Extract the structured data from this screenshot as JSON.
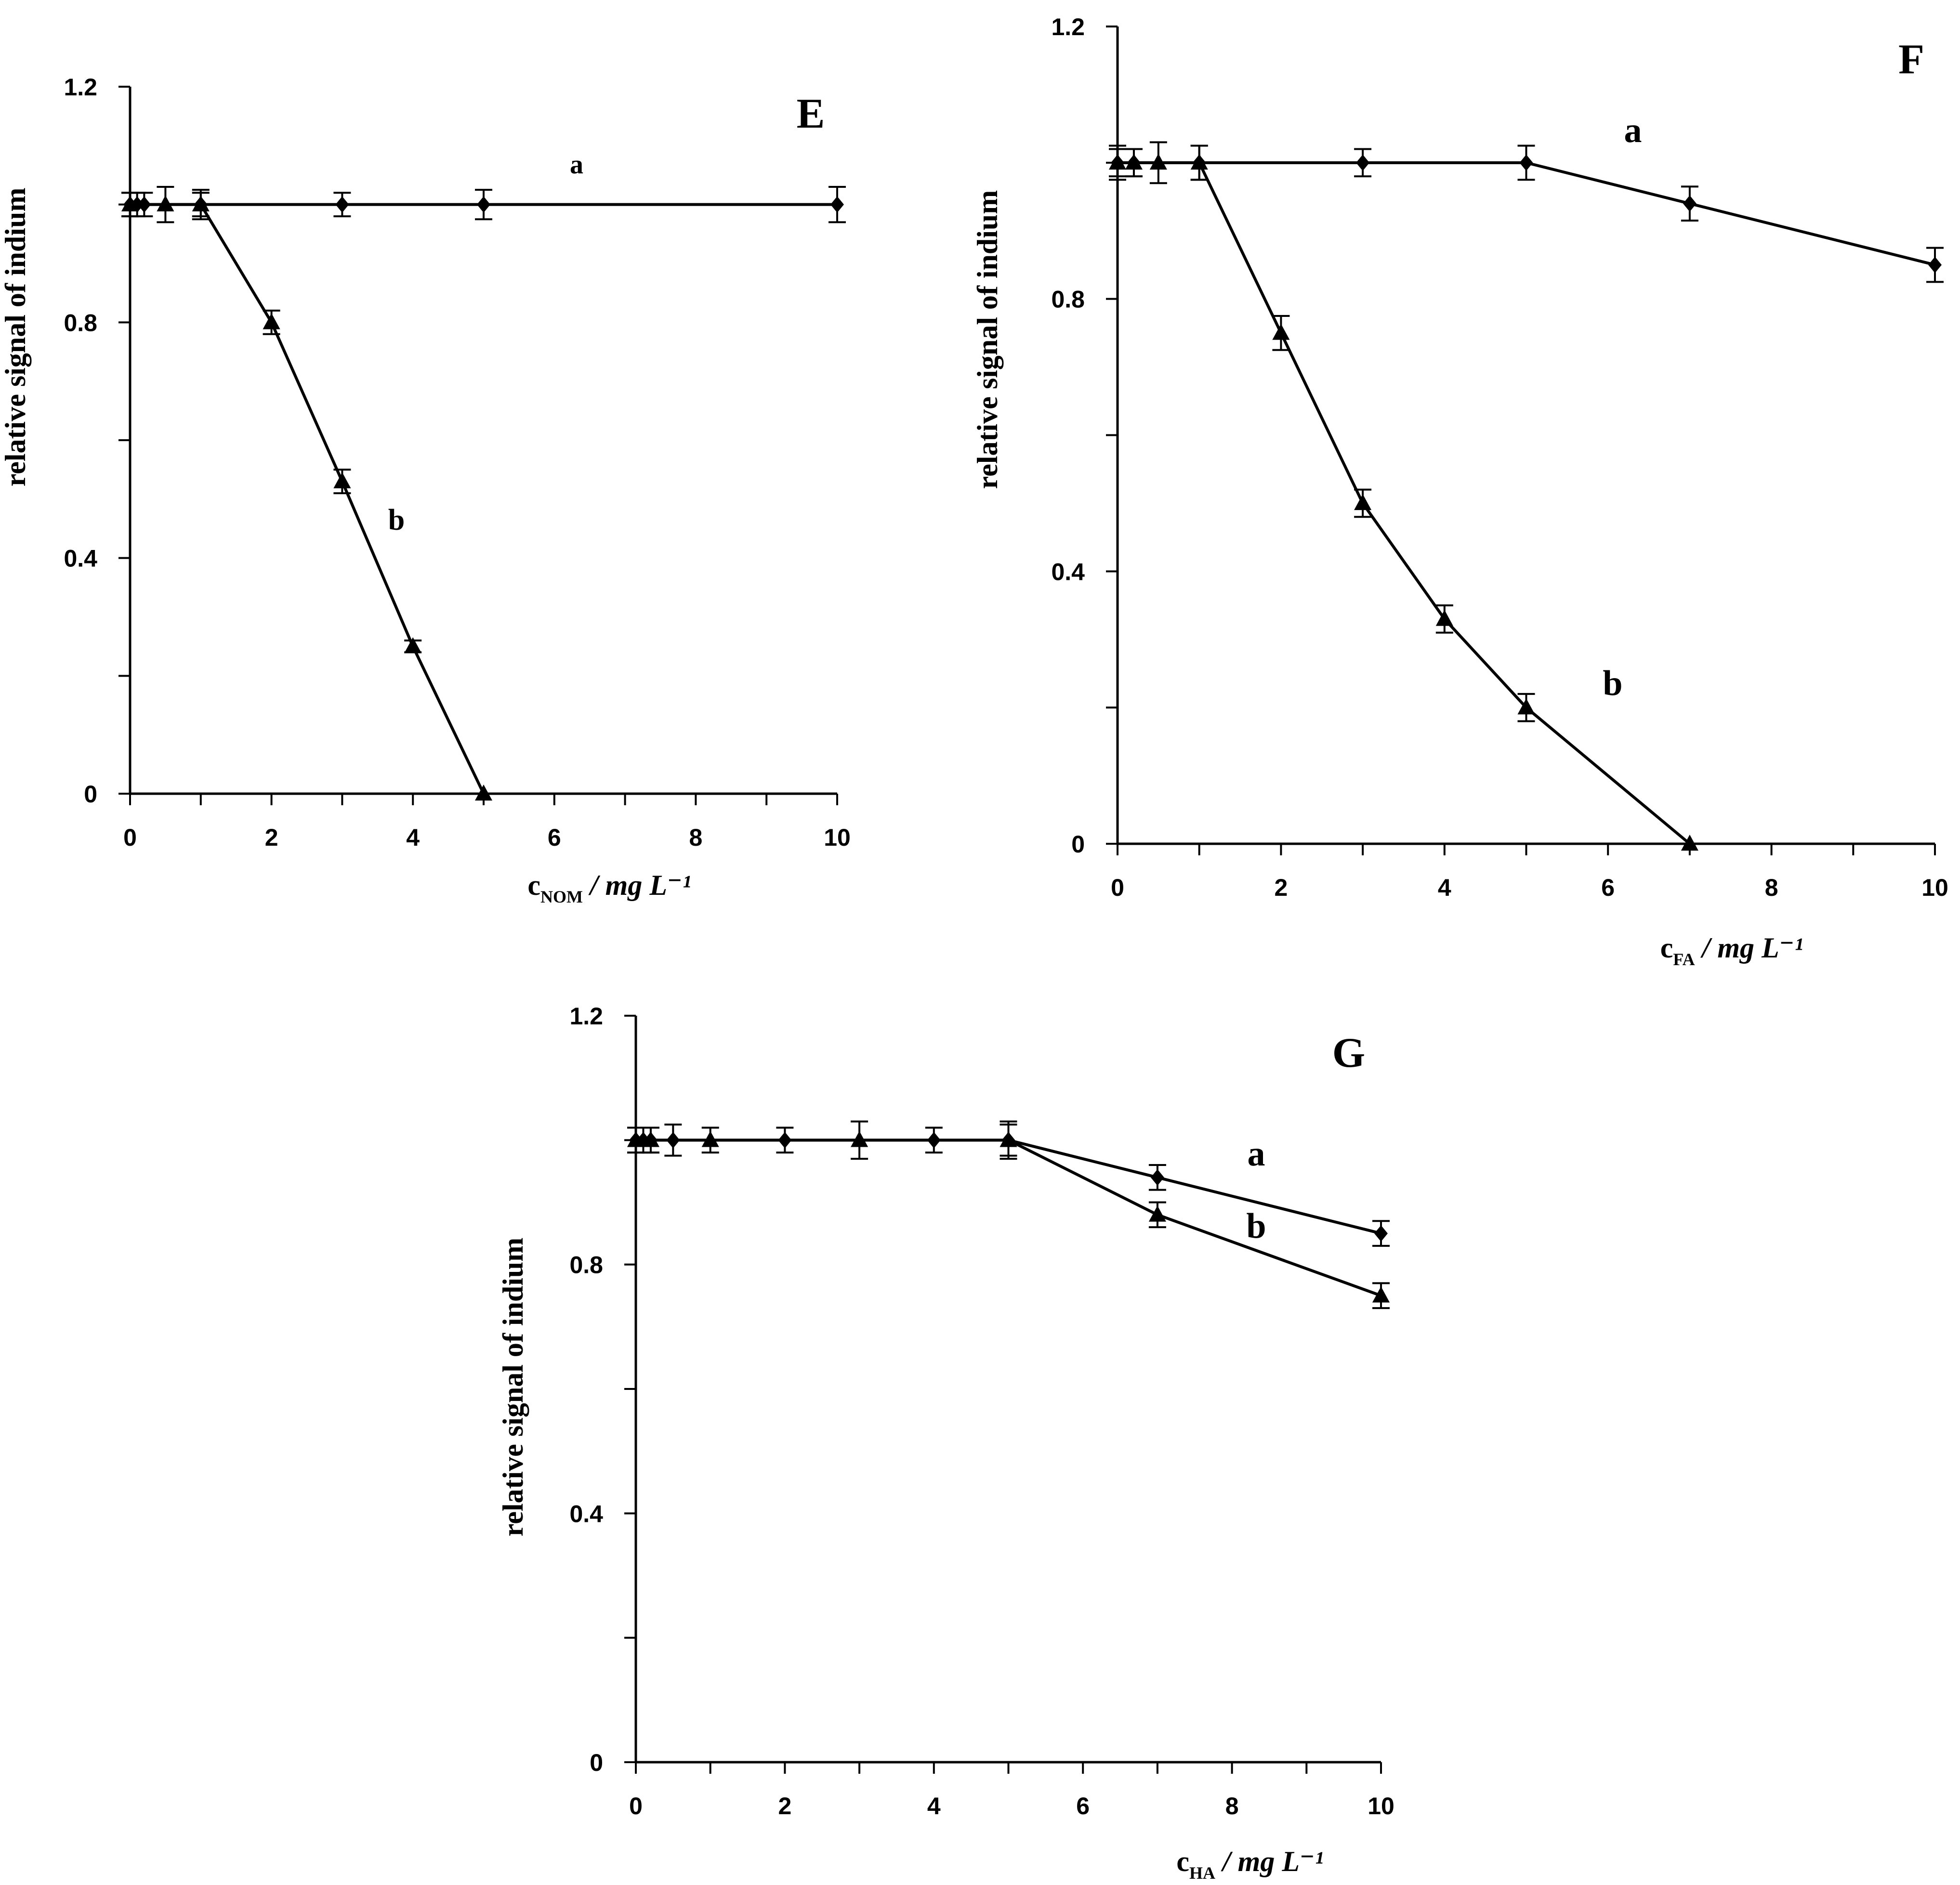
{
  "chart_data": [
    {
      "panel": "E",
      "type": "line",
      "xlabel": {
        "base": "c",
        "sub": "NOM",
        "unit": " / mg L⁻¹"
      },
      "ylabel": "relative signal of indium",
      "xlim": [
        0,
        10
      ],
      "ylim": [
        0,
        1.2
      ],
      "x_ticks": [
        "0",
        "2",
        "4",
        "6",
        "8",
        "10"
      ],
      "y_ticks": [
        "0",
        "0.4",
        "0.8",
        "1.2"
      ],
      "grid": false,
      "series": [
        {
          "name": "a",
          "marker": "diamond",
          "x": [
            0,
            0.1,
            0.2,
            1,
            3,
            5,
            10
          ],
          "y": [
            1.0,
            1.0,
            1.0,
            1.0,
            1.0,
            1.0,
            1.0
          ],
          "err": [
            0.02,
            0.02,
            0.02,
            0.02,
            0.02,
            0.025,
            0.03
          ]
        },
        {
          "name": "b",
          "marker": "triangle",
          "x": [
            0,
            0.5,
            1,
            2,
            3,
            4,
            5
          ],
          "y": [
            1.0,
            1.0,
            1.0,
            0.8,
            0.53,
            0.25,
            0.0
          ],
          "err": [
            0.02,
            0.03,
            0.025,
            0.02,
            0.02,
            0.01,
            0.0
          ]
        }
      ]
    },
    {
      "panel": "F",
      "type": "line",
      "xlabel": {
        "base": "c",
        "sub": "FA",
        "unit": " / mg L⁻¹"
      },
      "ylabel": "relative signal of indium",
      "xlim": [
        0,
        10
      ],
      "ylim": [
        0,
        1.2
      ],
      "x_ticks": [
        "0",
        "2",
        "4",
        "6",
        "8",
        "10"
      ],
      "y_ticks": [
        "0",
        "0.4",
        "0.8",
        "1.2"
      ],
      "grid": false,
      "series": [
        {
          "name": "a",
          "marker": "diamond",
          "x": [
            0,
            0.2,
            1,
            3,
            5,
            7,
            10
          ],
          "y": [
            1.0,
            1.0,
            1.0,
            1.0,
            1.0,
            0.94,
            0.85
          ],
          "err": [
            0.02,
            0.02,
            0.025,
            0.02,
            0.025,
            0.025,
            0.025
          ]
        },
        {
          "name": "b",
          "marker": "triangle",
          "x": [
            0,
            0.2,
            0.5,
            1,
            2,
            3,
            4,
            5,
            7
          ],
          "y": [
            1.0,
            1.0,
            1.0,
            1.0,
            0.75,
            0.5,
            0.33,
            0.2,
            0.0
          ],
          "err": [
            0.025,
            0.02,
            0.03,
            0.025,
            0.025,
            0.02,
            0.02,
            0.02,
            0.0
          ]
        }
      ]
    },
    {
      "panel": "G",
      "type": "line",
      "xlabel": {
        "base": "c",
        "sub": "HA",
        "unit": " / mg L⁻¹"
      },
      "ylabel": "relative signal of indium",
      "xlim": [
        0,
        10
      ],
      "ylim": [
        0,
        1.2
      ],
      "x_ticks": [
        "0",
        "2",
        "4",
        "6",
        "8",
        "10"
      ],
      "y_ticks": [
        "0",
        "0.4",
        "0.8",
        "1.2"
      ],
      "grid": false,
      "series": [
        {
          "name": "a",
          "marker": "diamond",
          "x": [
            0,
            0.1,
            0.2,
            0.5,
            2,
            4,
            5,
            7,
            10
          ],
          "y": [
            1.0,
            1.0,
            1.0,
            1.0,
            1.0,
            1.0,
            1.0,
            0.94,
            0.85
          ],
          "err": [
            0.02,
            0.02,
            0.02,
            0.025,
            0.02,
            0.02,
            0.025,
            0.02,
            0.02
          ]
        },
        {
          "name": "b",
          "marker": "triangle",
          "x": [
            0,
            0.2,
            1,
            3,
            5,
            7,
            10
          ],
          "y": [
            1.0,
            1.0,
            1.0,
            1.0,
            1.0,
            0.88,
            0.75
          ],
          "err": [
            0.02,
            0.02,
            0.02,
            0.03,
            0.03,
            0.02,
            0.02
          ]
        }
      ]
    }
  ]
}
